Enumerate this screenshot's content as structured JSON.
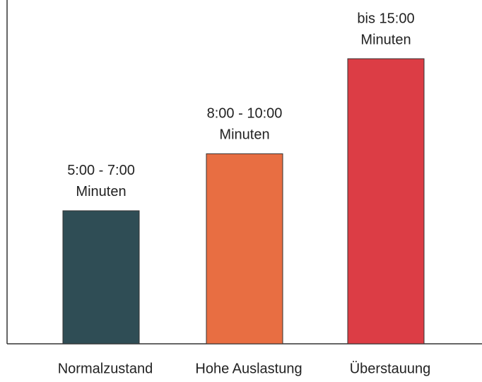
{
  "chart_data": {
    "type": "bar",
    "categories": [
      "Normalzustand",
      "Hohe Auslastung",
      "Überstauung"
    ],
    "values": [
      7,
      10,
      15
    ],
    "value_labels": [
      [
        "5:00 - 7:00",
        "Minuten"
      ],
      [
        "8:00 - 10:00",
        "Minuten"
      ],
      [
        "bis 15:00",
        "Minuten"
      ]
    ],
    "colors": [
      "#2f4d55",
      "#e86e42",
      "#dc3d45"
    ]
  }
}
